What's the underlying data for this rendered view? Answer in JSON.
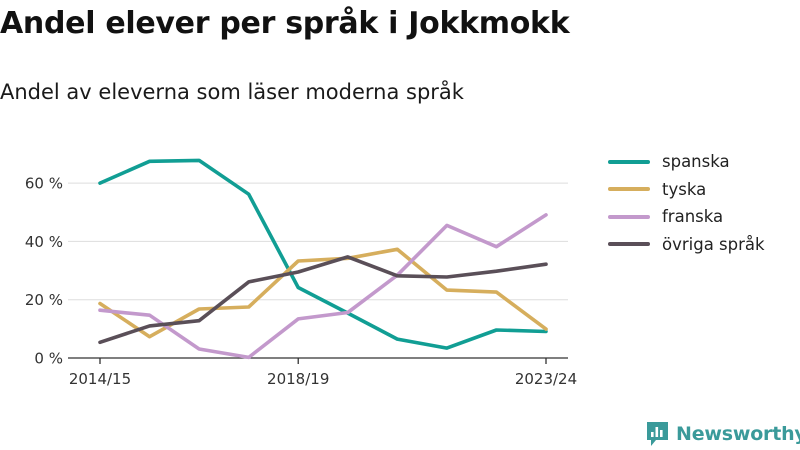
{
  "title": "Andel elever per språk i Jokkmokk",
  "subtitle": "Andel av eleverna som läser moderna språk",
  "brand": {
    "name": "Newsworthy",
    "color": "#3a9a9a",
    "icon": "newsworthy-logo-icon"
  },
  "chart_data": {
    "type": "line",
    "categories": [
      "2014/15",
      "2015/16",
      "2016/17",
      "2017/18",
      "2018/19",
      "2019/20",
      "2020/21",
      "2021/22",
      "2022/23",
      "2023/24"
    ],
    "x_tick_labels": [
      "2014/15",
      "2018/19",
      "2023/24"
    ],
    "y_ticks": [
      "0 %",
      "20 %",
      "40 %",
      "60 %"
    ],
    "ylim": [
      0,
      70
    ],
    "grid": true,
    "legend_position": "right",
    "series": [
      {
        "name": "spanska",
        "color": "#119e94",
        "values": [
          60,
          67.5,
          67.8,
          56.2,
          24.2,
          15.4,
          6.5,
          3.4,
          9.6,
          9.1
        ]
      },
      {
        "name": "tyska",
        "color": "#d6ae5d",
        "values": [
          18.7,
          7.3,
          16.8,
          17.5,
          33.3,
          34.2,
          37.3,
          23.3,
          22.6,
          9.9
        ]
      },
      {
        "name": "franska",
        "color": "#c399cc",
        "values": [
          16.4,
          14.7,
          3.1,
          0.2,
          13.4,
          15.6,
          28.4,
          45.5,
          38.2,
          49.1
        ]
      },
      {
        "name": "övriga språk",
        "color": "#5a4f58",
        "values": [
          5.4,
          11,
          12.8,
          26.1,
          29.5,
          34.7,
          28.2,
          27.8,
          29.8,
          32.2
        ]
      }
    ]
  }
}
